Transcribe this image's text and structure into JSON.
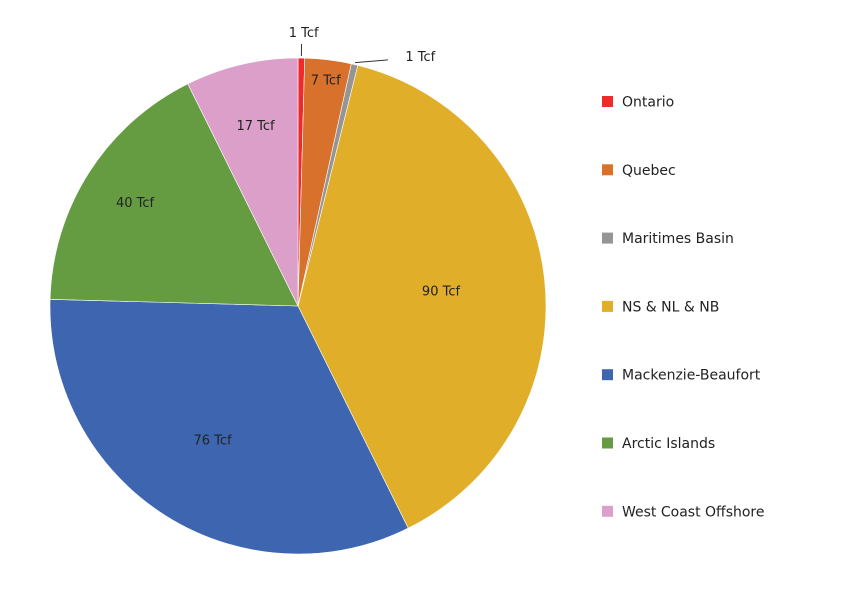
{
  "chart_data": {
    "type": "pie",
    "unit": "Tcf",
    "start": "top",
    "direction": "clockwise",
    "legend_placement": "right",
    "slices": [
      {
        "name": "Ontario",
        "value": 1,
        "label": "1 Tcf",
        "color": "#ee2a2a"
      },
      {
        "name": "Quebec",
        "value": 7,
        "label": "7 Tcf",
        "color": "#d8712c"
      },
      {
        "name": "Maritimes Basin",
        "value": 1,
        "label": "1 Tcf",
        "color": "#959595"
      },
      {
        "name": "NS & NL & NB",
        "value": 90,
        "label": "90 Tcf",
        "color": "#e0ae28"
      },
      {
        "name": "Mackenzie-Beaufort",
        "value": 76,
        "label": "76 Tcf",
        "color": "#3e66b0"
      },
      {
        "name": "Arctic Islands",
        "value": 40,
        "label": "40 Tcf",
        "color": "#659c42"
      },
      {
        "name": "West Coast Offshore",
        "value": 17,
        "label": "17 Tcf",
        "color": "#dc9fc9"
      }
    ]
  }
}
